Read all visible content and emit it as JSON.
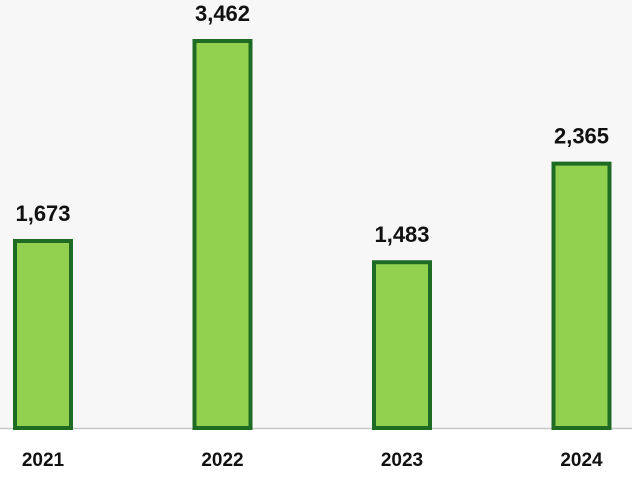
{
  "chart_data": {
    "type": "bar",
    "categories": [
      "2021",
      "2022",
      "2023",
      "2024"
    ],
    "values": [
      1673,
      3462,
      1483,
      2365
    ],
    "value_labels": [
      "1,673",
      "3,462",
      "1,483",
      "2,365"
    ],
    "color": "#92d050"
  }
}
